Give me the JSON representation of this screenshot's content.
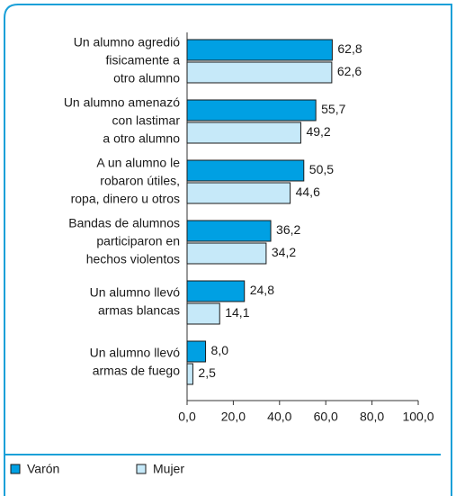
{
  "chart_data": {
    "type": "bar",
    "orientation": "horizontal",
    "categories": [
      [
        "Un alumno agredió",
        "fisicamente a",
        "otro alumno"
      ],
      [
        "Un alumno amenazó",
        "con lastimar",
        "a otro alumno"
      ],
      [
        "A un alumno le",
        "robaron útiles,",
        "ropa, dinero u otros"
      ],
      [
        "Bandas de alumnos",
        "participaron en",
        "hechos violentos"
      ],
      [
        "Un alumno llevó",
        "armas blancas"
      ],
      [
        "Un alumno llevó",
        "armas de fuego"
      ]
    ],
    "series": [
      {
        "name": "Varón",
        "color": "#00a0e3",
        "values": [
          62.8,
          55.7,
          50.5,
          36.2,
          24.8,
          8.0
        ],
        "value_labels": [
          "62,8",
          "55,7",
          "50,5",
          "36,2",
          "24,8",
          "8,0"
        ]
      },
      {
        "name": "Mujer",
        "color": "#c6e9f9",
        "values": [
          62.6,
          49.2,
          44.6,
          34.2,
          14.1,
          2.5
        ],
        "value_labels": [
          "62,6",
          "49,2",
          "44,6",
          "34,2",
          "14,1",
          "2,5"
        ]
      }
    ],
    "xlim": [
      0,
      100
    ],
    "xticks": [
      {
        "value": 0,
        "label": "0,0"
      },
      {
        "value": 20,
        "label": "20,0"
      },
      {
        "value": 40,
        "label": "40,0"
      },
      {
        "value": 60,
        "label": "60,0"
      },
      {
        "value": 80,
        "label": "80,0"
      },
      {
        "value": 100,
        "label": "100,0"
      }
    ],
    "legend": "bottom-left"
  }
}
